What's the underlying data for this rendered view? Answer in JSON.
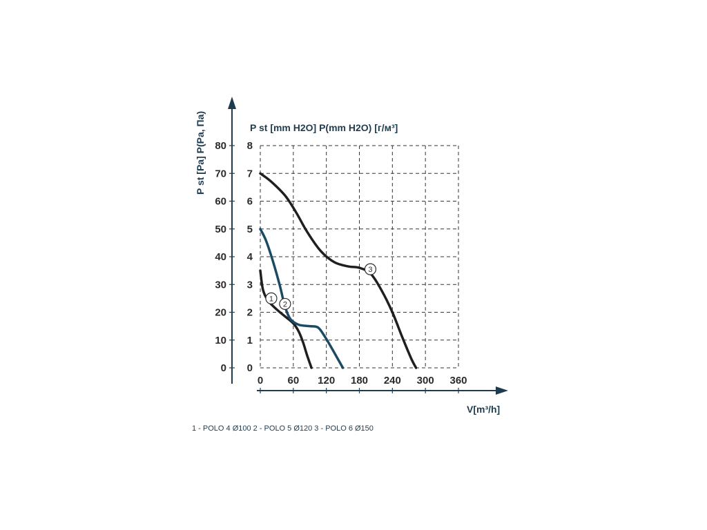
{
  "chart_data": {
    "type": "line",
    "title": "",
    "y_axis_pa": {
      "label": "P st [Pa] P(Pa, Па)",
      "ticks": [
        "0",
        "10",
        "20",
        "30",
        "40",
        "50",
        "60",
        "70",
        "80"
      ],
      "range": [
        0,
        80
      ]
    },
    "y_axis_mmh2o": {
      "label": "P st [mm H2O] P(mm H2O) [г/м³]",
      "ticks": [
        "0",
        "1",
        "2",
        "3",
        "4",
        "5",
        "6",
        "7",
        "8"
      ],
      "range": [
        0,
        8
      ]
    },
    "x_axis": {
      "label": "V[m³/h]",
      "ticks": [
        "0",
        "60",
        "120",
        "180",
        "240",
        "300",
        "360"
      ],
      "range": [
        0,
        360
      ]
    },
    "grid": true,
    "series": [
      {
        "marker": "1",
        "color": "#1f1f1f",
        "points": [
          [
            0,
            3.5
          ],
          [
            5,
            2.8
          ],
          [
            15,
            2.4
          ],
          [
            30,
            2.1
          ],
          [
            45,
            1.85
          ],
          [
            60,
            1.6
          ],
          [
            70,
            1.3
          ],
          [
            78,
            0.9
          ],
          [
            85,
            0.45
          ],
          [
            93,
            0
          ]
        ]
      },
      {
        "marker": "2",
        "color": "#1c4a63",
        "points": [
          [
            0,
            5.0
          ],
          [
            10,
            4.6
          ],
          [
            22,
            3.9
          ],
          [
            35,
            3.0
          ],
          [
            45,
            2.2
          ],
          [
            55,
            1.75
          ],
          [
            70,
            1.55
          ],
          [
            90,
            1.5
          ],
          [
            105,
            1.45
          ],
          [
            118,
            1.1
          ],
          [
            130,
            0.7
          ],
          [
            140,
            0.35
          ],
          [
            150,
            0
          ]
        ]
      },
      {
        "marker": "3",
        "color": "#1f1f1f",
        "points": [
          [
            0,
            7.0
          ],
          [
            20,
            6.7
          ],
          [
            45,
            6.2
          ],
          [
            65,
            5.6
          ],
          [
            85,
            4.9
          ],
          [
            110,
            4.2
          ],
          [
            135,
            3.8
          ],
          [
            160,
            3.65
          ],
          [
            180,
            3.6
          ],
          [
            200,
            3.4
          ],
          [
            220,
            2.8
          ],
          [
            240,
            2.0
          ],
          [
            258,
            1.1
          ],
          [
            275,
            0.3
          ],
          [
            283,
            0
          ]
        ]
      }
    ],
    "markers": [
      "1",
      "2",
      "3"
    ],
    "legend": {
      "text": "1 - POLO 4 Ø100   2 - POLO 5 Ø120   3 - POLO 6 Ø150"
    },
    "colors": {
      "axis": "#1f3c4e",
      "curve_dark": "#1f1f1f",
      "curve_blue": "#1c4a63"
    }
  }
}
